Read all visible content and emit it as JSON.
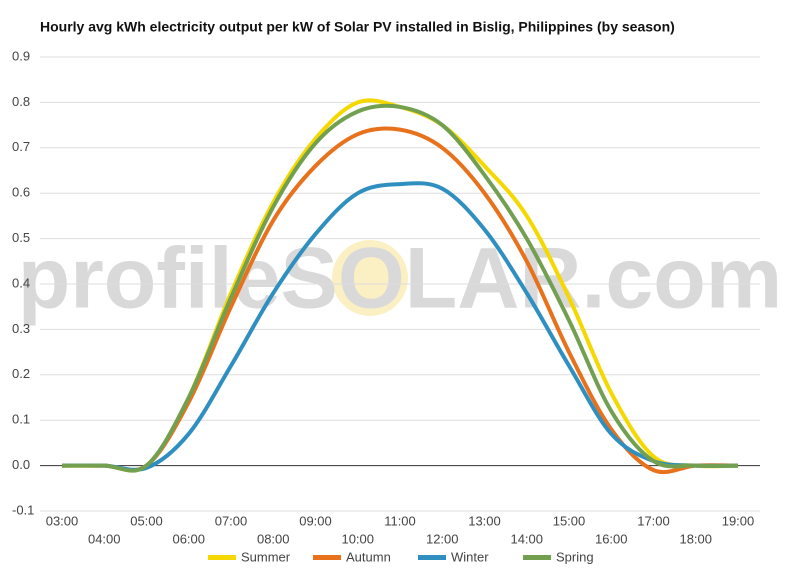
{
  "chart_data": {
    "type": "line",
    "title": "Hourly avg kWh electricity output per kW of Solar PV installed in Bislig, Philippines (by season)",
    "watermark": "profileSOLAR.com",
    "categories": [
      "03:00",
      "04:00",
      "05:00",
      "06:00",
      "07:00",
      "08:00",
      "09:00",
      "10:00",
      "11:00",
      "12:00",
      "13:00",
      "14:00",
      "15:00",
      "16:00",
      "17:00",
      "18:00",
      "19:00"
    ],
    "series": [
      {
        "name": "Summer",
        "color": "#f5d800",
        "values": [
          0,
          0,
          0.0,
          0.15,
          0.38,
          0.58,
          0.72,
          0.8,
          0.79,
          0.75,
          0.66,
          0.55,
          0.37,
          0.16,
          0.02,
          0.0,
          0
        ]
      },
      {
        "name": "Autumn",
        "color": "#e8711c",
        "values": [
          0,
          0,
          0.0,
          0.14,
          0.35,
          0.54,
          0.66,
          0.73,
          0.74,
          0.7,
          0.6,
          0.45,
          0.25,
          0.08,
          -0.01,
          0,
          0
        ]
      },
      {
        "name": "Winter",
        "color": "#2e8fc0",
        "values": [
          0,
          0,
          -0.005,
          0.07,
          0.22,
          0.38,
          0.51,
          0.6,
          0.62,
          0.61,
          0.52,
          0.38,
          0.22,
          0.07,
          0.01,
          0,
          0
        ]
      },
      {
        "name": "Spring",
        "color": "#72a050",
        "values": [
          0,
          0,
          0.0,
          0.15,
          0.37,
          0.57,
          0.71,
          0.78,
          0.79,
          0.75,
          0.64,
          0.5,
          0.32,
          0.12,
          0.01,
          0,
          0
        ]
      }
    ],
    "ylim": [
      -0.1,
      0.9
    ],
    "yticks": [
      -0.1,
      {
        "value": 0,
        "label": "0.0"
      },
      0.1,
      0.2,
      0.3,
      0.4,
      0.5,
      0.6,
      0.7,
      0.8,
      0.9
    ],
    "grid": true
  }
}
